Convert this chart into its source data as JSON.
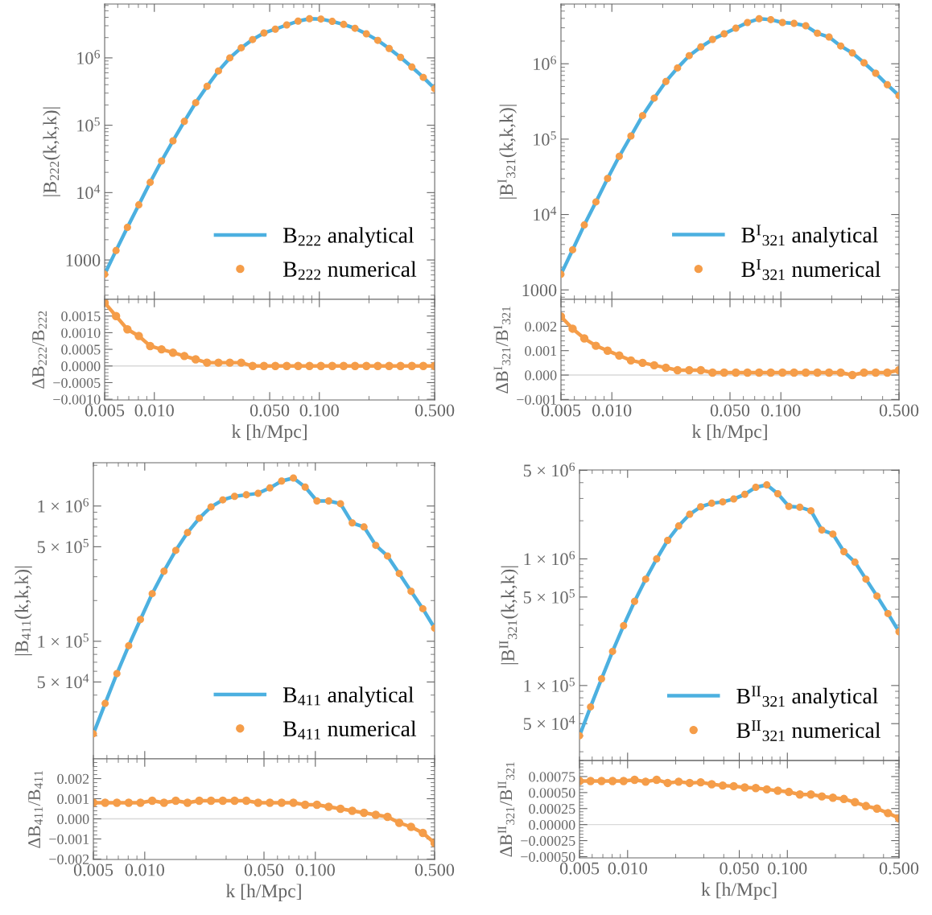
{
  "chart_data": [
    {
      "type": "line",
      "ylabel": "|B$_{222}$(k,k,k)|",
      "log": "xy",
      "legend": "bottom right",
      "tick_labels": "y",
      "x": [
        0.005,
        0.00586,
        0.006869,
        0.008051,
        0.009437,
        0.01106,
        0.01297,
        0.0152,
        0.01781,
        0.02088,
        0.02447,
        0.02868,
        0.03362,
        0.0394,
        0.04618,
        0.05413,
        0.06345,
        0.07437,
        0.08716,
        0.1022,
        0.1197,
        0.1404,
        0.1645,
        0.1928,
        0.226,
        0.2649,
        0.3105,
        0.3639,
        0.4266,
        0.5
      ],
      "xlim": [
        0.005,
        0.5
      ],
      "xticks": [
        {
          "value": 0.01,
          "label": null
        },
        {
          "value": 0.05,
          "label": null
        },
        {
          "value": 0.1,
          "label": null
        }
      ],
      "ylim": [
        260,
        6300000
      ],
      "yticks": [
        1000,
        {
          "value": 10000,
          "label": "10$^{4}$"
        },
        {
          "value": 100000,
          "label": "10$^{5}$"
        },
        {
          "value": 1000000,
          "label": "10$^{6}$"
        }
      ],
      "series": [
        {
          "name": "B$_{222}$ analytical",
          "type": "line",
          "color": "#4cb0e0",
          "values": [
            615,
            1380,
            3050,
            6580,
            14200,
            29500,
            58700,
            114000,
            216000,
            378000,
            640000,
            1000000,
            1410000,
            1870000,
            2340000,
            2670000,
            3080000,
            3510000,
            3810000,
            3770000,
            3480000,
            3140000,
            2750000,
            2270000,
            1820000,
            1380000,
            1020000,
            731000,
            513000,
            349000
          ]
        },
        {
          "name": "B$_{222}$ numerical",
          "type": "scatter",
          "marker": "circle",
          "color": "#f59d49",
          "values": [
            615,
            1380,
            3050,
            6580,
            14200,
            29500,
            58700,
            114000,
            216000,
            378000,
            640000,
            1000000,
            1410000,
            1870000,
            2340000,
            2670000,
            3080000,
            3510000,
            3810000,
            3770000,
            3480000,
            3140000,
            2750000,
            2270000,
            1820000,
            1380000,
            1020000,
            731000,
            513000,
            349000
          ]
        }
      ]
    },
    {
      "type": "line",
      "xlabel": "k [h/Mpc]",
      "ylabel": "ΔB$_{222}$/B$_{222}$",
      "log": "x",
      "marker": "circle",
      "x": [
        0.005,
        0.00586,
        0.006869,
        0.008051,
        0.009437,
        0.01106,
        0.01297,
        0.0152,
        0.01781,
        0.02088,
        0.02447,
        0.02868,
        0.03362,
        0.0394,
        0.04618,
        0.05413,
        0.06345,
        0.07437,
        0.08716,
        0.1022,
        0.1197,
        0.1404,
        0.1645,
        0.1928,
        0.226,
        0.2649,
        0.3105,
        0.3639,
        0.4266,
        0.5
      ],
      "xlim": [
        0.005,
        0.5
      ],
      "xticks": [
        {
          "value": 0.005,
          "label": "0.005"
        },
        {
          "value": 0.01,
          "label": "0.010"
        },
        {
          "value": 0.05,
          "label": "0.050"
        },
        {
          "value": 0.1,
          "label": "0.100"
        },
        {
          "value": 0.5,
          "label": "0.500"
        }
      ],
      "ylim": [
        -0.00102,
        0.002
      ],
      "yticks": [
        {
          "value": -0.001,
          "label": "−0.0010"
        },
        {
          "value": -0.0005,
          "label": "−0.0005"
        },
        {
          "value": 0,
          "label": "0.0000"
        },
        {
          "value": 0.0005,
          "label": "0.0005"
        },
        {
          "value": 0.001,
          "label": "0.0010"
        },
        {
          "value": 0.0015,
          "label": "0.0015"
        }
      ],
      "ref_lines": [
        {
          "axis": "y",
          "value": 0,
          "color": "#d9d9d9"
        }
      ],
      "series": [
        {
          "color": "#f59d49",
          "values": [
            0.0019,
            0.0015,
            0.0011,
            0.0009,
            0.0006,
            0.0005,
            0.0004,
            0.0003,
            0.0002,
            0.0001,
            0.0001,
            0.0001,
            0.0001,
            0,
            0,
            0,
            0,
            0,
            0,
            0,
            0,
            0,
            0,
            0,
            0,
            0,
            0,
            0,
            0,
            0
          ]
        }
      ]
    },
    {
      "type": "line",
      "ylabel": "|B$^{I}$$_{321}$(k,k,k)|",
      "log": "xy",
      "legend": "bottom right",
      "tick_labels": "y",
      "x": [
        0.005,
        0.00586,
        0.006869,
        0.008051,
        0.009437,
        0.01106,
        0.01297,
        0.0152,
        0.01781,
        0.02088,
        0.02447,
        0.02868,
        0.03362,
        0.0394,
        0.04618,
        0.05413,
        0.06345,
        0.07437,
        0.08716,
        0.1022,
        0.1197,
        0.1404,
        0.1645,
        0.1928,
        0.226,
        0.2649,
        0.3105,
        0.3639,
        0.4266,
        0.5
      ],
      "xlim": [
        0.005,
        0.5
      ],
      "xticks": [
        {
          "value": 0.01,
          "label": null
        },
        {
          "value": 0.05,
          "label": null
        },
        {
          "value": 0.1,
          "label": null
        }
      ],
      "ylim": [
        748,
        6200000
      ],
      "yticks": [
        1000,
        {
          "value": 10000,
          "label": "10$^{4}$"
        },
        {
          "value": 100000,
          "label": "10$^{5}$"
        },
        {
          "value": 1000000,
          "label": "10$^{6}$"
        }
      ],
      "series": [
        {
          "name": "B$^{I}$$_{321}$ analytical",
          "type": "line",
          "color": "#4cb0e0",
          "values": [
            1610,
            3400,
            7260,
            14700,
            30100,
            59100,
            110000,
            205000,
            350000,
            581000,
            881000,
            1280000,
            1670000,
            2100000,
            2490000,
            2960000,
            3520000,
            3960000,
            3850000,
            3520000,
            3430000,
            3190000,
            2540000,
            2260000,
            1720000,
            1390000,
            1030000,
            748000,
            526000,
            377000
          ]
        },
        {
          "name": "B$^{I}$$_{321}$ numerical",
          "type": "scatter",
          "marker": "circle",
          "color": "#f59d49",
          "values": [
            1610,
            3400,
            7260,
            14700,
            30100,
            59100,
            110000,
            205000,
            350000,
            581000,
            881000,
            1280000,
            1670000,
            2100000,
            2490000,
            2960000,
            3520000,
            3960000,
            3850000,
            3520000,
            3430000,
            3190000,
            2540000,
            2260000,
            1720000,
            1390000,
            1030000,
            748000,
            526000,
            377000
          ]
        }
      ]
    },
    {
      "type": "line",
      "xlabel": "k [h/Mpc]",
      "ylabel": "ΔB$^{I}$$_{321}$/B$^{I}$$_{321}$",
      "log": "x",
      "marker": "circle",
      "x": [
        0.005,
        0.00586,
        0.006869,
        0.008051,
        0.009437,
        0.01106,
        0.01297,
        0.0152,
        0.01781,
        0.02088,
        0.02447,
        0.02868,
        0.03362,
        0.0394,
        0.04618,
        0.05413,
        0.06345,
        0.07437,
        0.08716,
        0.1022,
        0.1197,
        0.1404,
        0.1645,
        0.1928,
        0.226,
        0.2649,
        0.3105,
        0.3639,
        0.4266,
        0.5
      ],
      "xlim": [
        0.005,
        0.5
      ],
      "xticks": [
        {
          "value": 0.005,
          "label": "0.005"
        },
        {
          "value": 0.01,
          "label": "0.010"
        },
        {
          "value": 0.05,
          "label": "0.050"
        },
        {
          "value": 0.1,
          "label": "0.100"
        },
        {
          "value": 0.5,
          "label": "0.500"
        }
      ],
      "ylim": [
        -0.00102,
        0.0031
      ],
      "yticks": [
        {
          "value": -0.001,
          "label": "−0.001"
        },
        {
          "value": 0,
          "label": "0.000"
        },
        {
          "value": 0.001,
          "label": "0.001"
        },
        {
          "value": 0.002,
          "label": "0.002"
        }
      ],
      "ref_lines": [
        {
          "axis": "y",
          "value": 0,
          "color": "#d9d9d9"
        }
      ],
      "series": [
        {
          "color": "#f59d49",
          "values": [
            0.0024,
            0.0019,
            0.0015,
            0.0012,
            0.001,
            0.0008,
            0.0006,
            0.0005,
            0.0004,
            0.0003,
            0.0002,
            0.0002,
            0.0002,
            0.0001,
            0.0001,
            0.0001,
            0.0001,
            0.0001,
            0.0001,
            0.0001,
            0.0001,
            0.0001,
            0.0001,
            0.0001,
            0.0001,
            0,
            0.0001,
            0.0001,
            0.0001,
            0.0002
          ]
        }
      ]
    },
    {
      "type": "line",
      "ylabel": "|B$_{411}$(k,k,k)|",
      "log": "xy",
      "legend": "bottom right",
      "tick_labels": "y",
      "x": [
        0.005,
        0.00586,
        0.006869,
        0.008051,
        0.009437,
        0.01106,
        0.01297,
        0.0152,
        0.01781,
        0.02088,
        0.02447,
        0.02868,
        0.03362,
        0.0394,
        0.04618,
        0.05413,
        0.06345,
        0.07437,
        0.08716,
        0.1022,
        0.1197,
        0.1404,
        0.1645,
        0.1928,
        0.226,
        0.2649,
        0.3105,
        0.3639,
        0.4266,
        0.5
      ],
      "xlim": [
        0.005,
        0.5
      ],
      "xticks": [
        {
          "value": 0.01,
          "label": null
        },
        {
          "value": 0.05,
          "label": null
        },
        {
          "value": 0.1,
          "label": null
        }
      ],
      "ylim": [
        13500,
        2090000
      ],
      "yticks": [
        {
          "value": 50000,
          "label": "5 × 10$^{4}$"
        },
        {
          "value": 100000,
          "label": "1 × 10$^{5}$"
        },
        {
          "value": 500000,
          "label": "5 × 10$^{5}$"
        },
        {
          "value": 1000000,
          "label": "1 × 10$^{6}$"
        }
      ],
      "series": [
        {
          "name": "B$_{411}$ analytical",
          "type": "line",
          "color": "#4cb0e0",
          "values": [
            20700,
            34700,
            57700,
            92700,
            145000,
            225000,
            330000,
            470000,
            636000,
            813000,
            985000,
            1110000,
            1180000,
            1210000,
            1240000,
            1360000,
            1530000,
            1610000,
            1380000,
            1090000,
            1090000,
            1040000,
            750000,
            700000,
            512000,
            427000,
            317000,
            234000,
            174000,
            125000
          ]
        },
        {
          "name": "B$_{411}$ numerical",
          "type": "scatter",
          "marker": "circle",
          "color": "#f59d49",
          "values": [
            20700,
            34700,
            57700,
            92700,
            145000,
            225000,
            330000,
            470000,
            636000,
            813000,
            985000,
            1110000,
            1180000,
            1210000,
            1240000,
            1360000,
            1530000,
            1610000,
            1380000,
            1090000,
            1090000,
            1040000,
            750000,
            700000,
            512000,
            427000,
            317000,
            234000,
            174000,
            125000
          ]
        }
      ]
    },
    {
      "type": "line",
      "xlabel": "k [h/Mpc]",
      "ylabel": "ΔB$_{411}$/B$_{411}$",
      "log": "x",
      "marker": "circle",
      "x": [
        0.005,
        0.00586,
        0.006869,
        0.008051,
        0.009437,
        0.01106,
        0.01297,
        0.0152,
        0.01781,
        0.02088,
        0.02447,
        0.02868,
        0.03362,
        0.0394,
        0.04618,
        0.05413,
        0.06345,
        0.07437,
        0.08716,
        0.1022,
        0.1197,
        0.1404,
        0.1645,
        0.1928,
        0.226,
        0.2649,
        0.3105,
        0.3639,
        0.4266,
        0.5
      ],
      "xlim": [
        0.005,
        0.5
      ],
      "xticks": [
        {
          "value": 0.005,
          "label": "0.005"
        },
        {
          "value": 0.01,
          "label": "0.010"
        },
        {
          "value": 0.05,
          "label": "0.050"
        },
        {
          "value": 0.1,
          "label": "0.100"
        },
        {
          "value": 0.5,
          "label": "0.500"
        }
      ],
      "ylim": [
        -0.00202,
        0.00298
      ],
      "yticks": [
        {
          "value": -0.002,
          "label": "−0.002"
        },
        {
          "value": -0.001,
          "label": "−0.001"
        },
        {
          "value": 0,
          "label": "0.000"
        },
        {
          "value": 0.001,
          "label": "0.001"
        },
        {
          "value": 0.002,
          "label": "0.002"
        }
      ],
      "ref_lines": [
        {
          "axis": "y",
          "value": 0,
          "color": "#d9d9d9"
        }
      ],
      "series": [
        {
          "color": "#f59d49",
          "values": [
            0.0008,
            0.0008,
            0.0008,
            0.0008,
            0.0008,
            0.0009,
            0.0008,
            0.0009,
            0.0008,
            0.0009,
            0.0009,
            0.0009,
            0.0009,
            0.0009,
            0.0008,
            0.0008,
            0.0008,
            0.0008,
            0.0007,
            0.0007,
            0.0006,
            0.0005,
            0.0004,
            0.0003,
            0.0002,
            0.0001,
            -0.0002,
            -0.0004,
            -0.0007,
            -0.0012
          ]
        }
      ]
    },
    {
      "type": "line",
      "ylabel": "|B$^{II}$$_{321}$(k,k,k)|",
      "log": "xy",
      "legend": "bottom right",
      "tick_labels": "y",
      "x": [
        0.005,
        0.00586,
        0.006869,
        0.008051,
        0.009437,
        0.01106,
        0.01297,
        0.0152,
        0.01781,
        0.02088,
        0.02447,
        0.02868,
        0.03362,
        0.0394,
        0.04618,
        0.05413,
        0.06345,
        0.07437,
        0.08716,
        0.1022,
        0.1197,
        0.1404,
        0.1645,
        0.1928,
        0.226,
        0.2649,
        0.3105,
        0.3639,
        0.4266,
        0.5
      ],
      "xlim": [
        0.005,
        0.5
      ],
      "xticks": [
        {
          "value": 0.01,
          "label": null
        },
        {
          "value": 0.05,
          "label": null
        },
        {
          "value": 0.1,
          "label": null
        }
      ],
      "ylim": [
        25600,
        5040000
      ],
      "yticks": [
        {
          "value": 50000,
          "label": "5 × 10$^{4}$"
        },
        {
          "value": 100000,
          "label": "1 × 10$^{5}$"
        },
        {
          "value": 500000,
          "label": "5 × 10$^{5}$"
        },
        {
          "value": 1000000,
          "label": "1 × 10$^{6}$"
        },
        {
          "value": 5000000,
          "label": "5 × 10$^{6}$"
        }
      ],
      "series": [
        {
          "name": "B$^{II}$$_{321}$ analytical",
          "type": "line",
          "color": "#4cb0e0",
          "values": [
            40100,
            67800,
            113000,
            186000,
            297000,
            462000,
            692000,
            1000000,
            1400000,
            1820000,
            2250000,
            2580000,
            2750000,
            2820000,
            2970000,
            3230000,
            3680000,
            3840000,
            3270000,
            2600000,
            2560000,
            2400000,
            1690000,
            1570000,
            1140000,
            942000,
            692000,
            509000,
            370000,
            266000
          ]
        },
        {
          "name": "B$^{II}$$_{321}$ numerical",
          "type": "scatter",
          "marker": "circle",
          "color": "#f59d49",
          "values": [
            40100,
            67800,
            113000,
            186000,
            297000,
            462000,
            692000,
            1000000,
            1400000,
            1820000,
            2250000,
            2580000,
            2750000,
            2820000,
            2970000,
            3230000,
            3680000,
            3840000,
            3270000,
            2600000,
            2560000,
            2400000,
            1690000,
            1570000,
            1140000,
            942000,
            692000,
            509000,
            370000,
            266000
          ]
        }
      ]
    },
    {
      "type": "line",
      "xlabel": "k [h/Mpc]",
      "ylabel": "ΔB$^{II}$$_{321}$/B$^{II}$$_{321}$",
      "log": "x",
      "marker": "circle",
      "x": [
        0.005,
        0.00586,
        0.006869,
        0.008051,
        0.009437,
        0.01106,
        0.01297,
        0.0152,
        0.01781,
        0.02088,
        0.02447,
        0.02868,
        0.03362,
        0.0394,
        0.04618,
        0.05413,
        0.06345,
        0.07437,
        0.08716,
        0.1022,
        0.1197,
        0.1404,
        0.1645,
        0.1928,
        0.226,
        0.2649,
        0.3105,
        0.3639,
        0.4266,
        0.5
      ],
      "xlim": [
        0.005,
        0.5
      ],
      "xticks": [
        {
          "value": 0.005,
          "label": "0.005"
        },
        {
          "value": 0.01,
          "label": "0.010"
        },
        {
          "value": 0.05,
          "label": "0.050"
        },
        {
          "value": 0.1,
          "label": "0.100"
        },
        {
          "value": 0.5,
          "label": "0.500"
        }
      ],
      "ylim": [
        -0.00052,
        0.001
      ],
      "yticks": [
        {
          "value": -0.0005,
          "label": "−0.00050"
        },
        {
          "value": -0.00025,
          "label": "−0.00025"
        },
        {
          "value": 0,
          "label": "0.00000"
        },
        {
          "value": 0.00025,
          "label": "0.00025"
        },
        {
          "value": 0.0005,
          "label": "0.00050"
        },
        {
          "value": 0.00075,
          "label": "0.00075"
        }
      ],
      "ref_lines": [
        {
          "axis": "y",
          "value": 0,
          "color": "#d9d9d9"
        }
      ],
      "series": [
        {
          "color": "#f59d49",
          "values": [
            0.00068,
            0.00068,
            0.00068,
            0.00068,
            0.00068,
            0.0007,
            0.00067,
            0.0007,
            0.00065,
            0.00067,
            0.00065,
            0.00066,
            0.00063,
            0.00061,
            0.0006,
            0.00058,
            0.00057,
            0.00055,
            0.00053,
            0.00051,
            0.00047,
            0.00047,
            0.00044,
            0.00042,
            0.0004,
            0.00035,
            0.00029,
            0.00025,
            0.00018,
            0.0001
          ]
        }
      ]
    }
  ]
}
